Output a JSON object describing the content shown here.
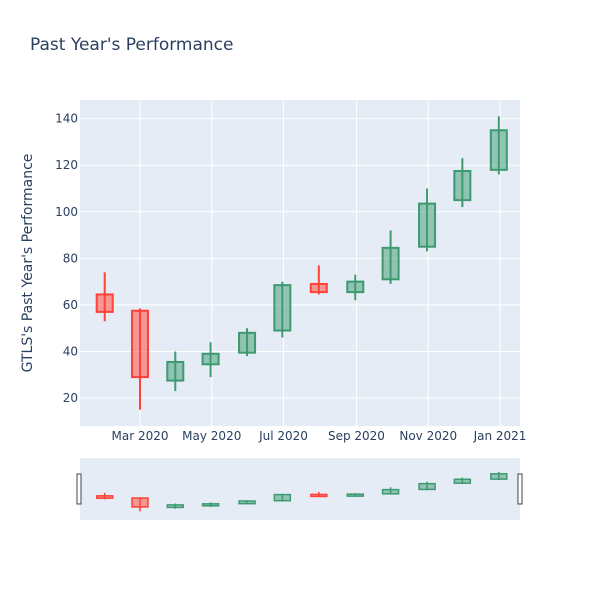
{
  "chart_data": {
    "type": "candlestick",
    "title": "Past Year's Performance",
    "xlabel": "",
    "ylabel": "GTLS's Past Year's Performance",
    "ylim": [
      8,
      148
    ],
    "yticks": [
      20,
      40,
      60,
      80,
      100,
      120,
      140
    ],
    "xlim": [
      "2020-01-10",
      "2021-01-18"
    ],
    "xticks": [
      {
        "date": "2020-03-01",
        "label": "Mar 2020"
      },
      {
        "date": "2020-05-01",
        "label": "May 2020"
      },
      {
        "date": "2020-07-01",
        "label": "Jul 2020"
      },
      {
        "date": "2020-09-01",
        "label": "Sep 2020"
      },
      {
        "date": "2020-11-01",
        "label": "Nov 2020"
      },
      {
        "date": "2021-01-01",
        "label": "Jan 2021"
      }
    ],
    "grid": true,
    "colors": {
      "increasing": "#3d9970",
      "decreasing": "#ff4136",
      "plot_bg": "#e5ecf6",
      "text": "#2a3f5f"
    },
    "candles": [
      {
        "date": "2020-01-31",
        "open": 64.5,
        "high": 74.0,
        "low": 53.0,
        "close": 57.0
      },
      {
        "date": "2020-03-01",
        "open": 57.5,
        "high": 58.5,
        "low": 15.0,
        "close": 29.0
      },
      {
        "date": "2020-03-31",
        "open": 27.5,
        "high": 40.0,
        "low": 23.0,
        "close": 35.5
      },
      {
        "date": "2020-04-30",
        "open": 34.5,
        "high": 44.0,
        "low": 29.0,
        "close": 39.0
      },
      {
        "date": "2020-05-31",
        "open": 39.5,
        "high": 50.0,
        "low": 38.0,
        "close": 48.0
      },
      {
        "date": "2020-06-30",
        "open": 49.0,
        "high": 70.0,
        "low": 46.0,
        "close": 68.5
      },
      {
        "date": "2020-07-31",
        "open": 69.0,
        "high": 77.0,
        "low": 64.5,
        "close": 65.5
      },
      {
        "date": "2020-08-31",
        "open": 65.5,
        "high": 73.0,
        "low": 62.0,
        "close": 70.0
      },
      {
        "date": "2020-09-30",
        "open": 71.0,
        "high": 92.0,
        "low": 69.0,
        "close": 84.5
      },
      {
        "date": "2020-10-31",
        "open": 85.0,
        "high": 110.0,
        "low": 83.0,
        "close": 103.5
      },
      {
        "date": "2020-11-30",
        "open": 105.0,
        "high": 123.0,
        "low": 102.0,
        "close": 117.5
      },
      {
        "date": "2020-12-31",
        "open": 118.0,
        "high": 141.0,
        "low": 116.0,
        "close": 135.0
      }
    ]
  }
}
